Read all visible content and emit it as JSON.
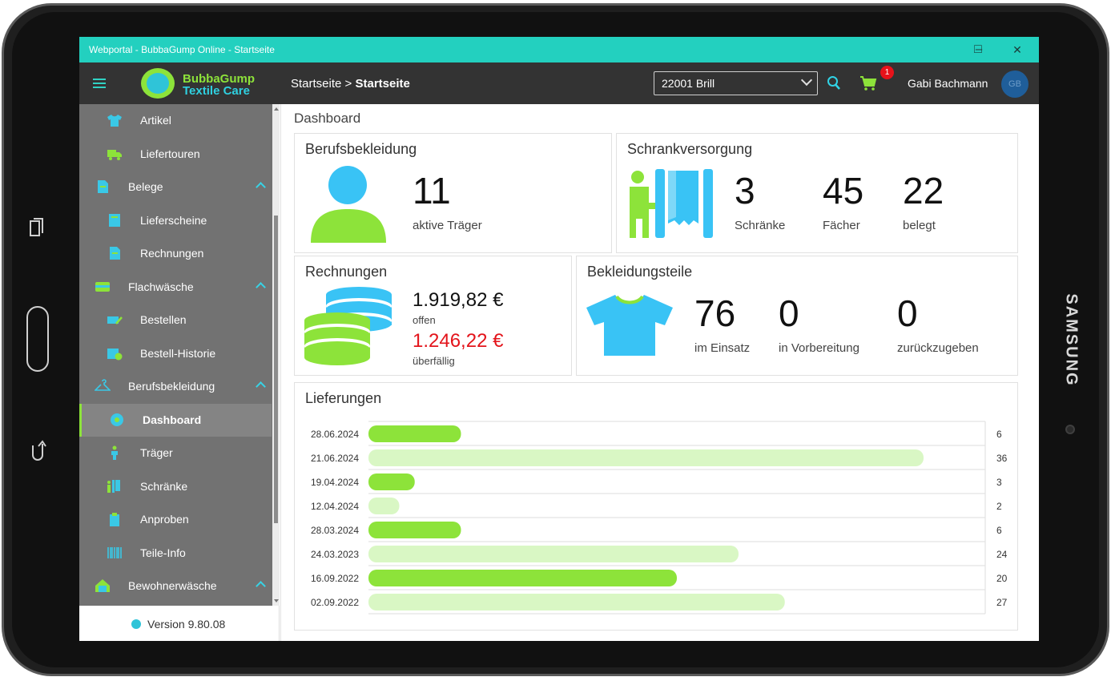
{
  "window": {
    "title": "Webportal - BubbaGump Online - Startseite",
    "minimize": "–",
    "maximize": "□",
    "close": "✕"
  },
  "app": {
    "logo_line1": "BubbaGump",
    "logo_line2": "Textile Care",
    "breadcrumb_root": "Startseite",
    "breadcrumb_sep": ">",
    "breadcrumb_current": "Startseite",
    "location_select": "22001 Brill",
    "cart_badge": "1",
    "user_name": "Gabi Bachmann",
    "user_initials": "GB"
  },
  "device": {
    "brand": "SAMSUNG"
  },
  "sidebar": {
    "items": [
      {
        "label": "Artikel",
        "icon": "shirt-icon",
        "level": 2
      },
      {
        "label": "Liefertouren",
        "icon": "truck-icon",
        "level": 2
      },
      {
        "label": "Belege",
        "icon": "document-icon",
        "level": 1
      },
      {
        "label": "Lieferscheine",
        "icon": "delivery-note-icon",
        "level": 2
      },
      {
        "label": "Rechnungen",
        "icon": "invoice-icon",
        "level": 2
      },
      {
        "label": "Flachwäsche",
        "icon": "linen-icon",
        "level": 1
      },
      {
        "label": "Bestellen",
        "icon": "order-icon",
        "level": 2
      },
      {
        "label": "Bestell-Historie",
        "icon": "history-icon",
        "level": 2
      },
      {
        "label": "Berufsbekleidung",
        "icon": "hanger-icon",
        "level": 1
      },
      {
        "label": "Dashboard",
        "icon": "dashboard-icon",
        "level": 2,
        "active": true
      },
      {
        "label": "Träger",
        "icon": "person-icon",
        "level": 2
      },
      {
        "label": "Schränke",
        "icon": "locker-icon",
        "level": 2
      },
      {
        "label": "Anproben",
        "icon": "clipboard-icon",
        "level": 2
      },
      {
        "label": "Teile-Info",
        "icon": "barcode-icon",
        "level": 2
      },
      {
        "label": "Bewohnerwäsche",
        "icon": "house-icon",
        "level": 1
      }
    ],
    "version": "Version 9.80.08"
  },
  "dashboard": {
    "title": "Dashboard",
    "berufsbekleidung": {
      "title": "Berufsbekleidung",
      "value": "11",
      "label": "aktive Träger"
    },
    "schrankversorgung": {
      "title": "Schrankversorgung",
      "stats": [
        {
          "value": "3",
          "label": "Schränke"
        },
        {
          "value": "45",
          "label": "Fächer"
        },
        {
          "value": "22",
          "label": "belegt"
        }
      ]
    },
    "rechnungen": {
      "title": "Rechnungen",
      "open_amount": "1.919,82 €",
      "open_label": "offen",
      "overdue_amount": "1.246,22 €",
      "overdue_label": "überfällig"
    },
    "bekleidungsteile": {
      "title": "Bekleidungsteile",
      "stats": [
        {
          "value": "76",
          "label": "im Einsatz"
        },
        {
          "value": "0",
          "label": "in Vorbereitung"
        },
        {
          "value": "0",
          "label": "zurückzugeben"
        }
      ]
    },
    "lieferungen": {
      "title": "Lieferungen"
    }
  },
  "colors": {
    "accent_green": "#8de33a",
    "light_green": "#d9f7c4",
    "accent_cyan": "#2fc4d8",
    "titlebar": "#23d0bf",
    "appbar": "#333333",
    "overdue_red": "#e3141b"
  },
  "chart_data": {
    "type": "bar",
    "orientation": "horizontal",
    "title": "Lieferungen",
    "categories": [
      "28.06.2024",
      "21.06.2024",
      "19.04.2024",
      "12.04.2024",
      "28.03.2024",
      "24.03.2023",
      "16.09.2022",
      "02.09.2022"
    ],
    "values": [
      6,
      36,
      3,
      2,
      6,
      24,
      20,
      27
    ],
    "highlight": [
      true,
      false,
      true,
      false,
      true,
      false,
      true,
      false
    ],
    "xlim": [
      0,
      40
    ],
    "grid": true
  }
}
